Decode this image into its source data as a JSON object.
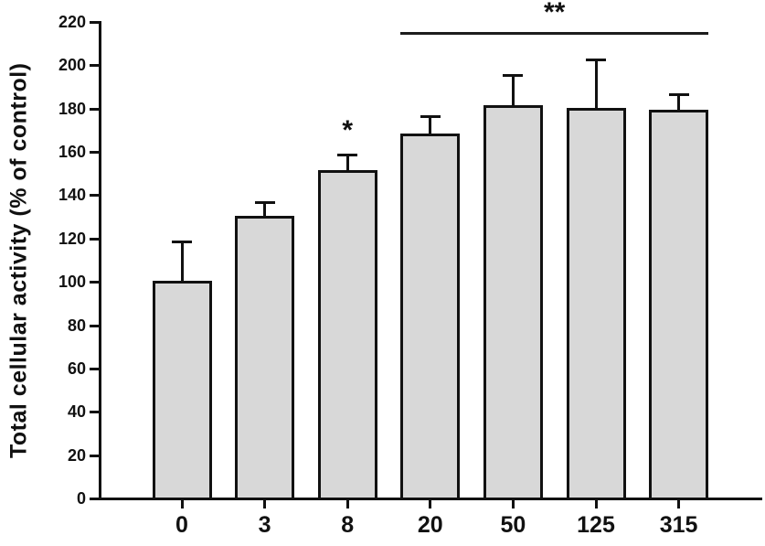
{
  "chart_data": {
    "type": "bar",
    "title": "",
    "xlabel": "",
    "ylabel": "Total cellular activity (% of control)",
    "ylim": [
      0,
      220
    ],
    "ytick_step": 20,
    "yticks": [
      0,
      20,
      40,
      60,
      80,
      100,
      120,
      140,
      160,
      180,
      200,
      220
    ],
    "grid": false,
    "legend": null,
    "categories": [
      "0",
      "3",
      "8",
      "20",
      "50",
      "125",
      "315"
    ],
    "values": [
      100,
      130,
      151,
      168,
      181,
      180,
      179
    ],
    "errors": [
      18,
      6,
      7,
      8,
      14,
      22,
      7
    ],
    "annotations": [
      {
        "type": "star",
        "label": "*",
        "bar_index": 2
      },
      {
        "type": "bracket",
        "label": "**",
        "from_index": 3,
        "to_index": 6
      }
    ],
    "colors": {
      "bar_fill": "#d8d8d8",
      "bar_border": "#111111",
      "axis": "#111111",
      "text": "#111111",
      "background": "#ffffff"
    }
  }
}
